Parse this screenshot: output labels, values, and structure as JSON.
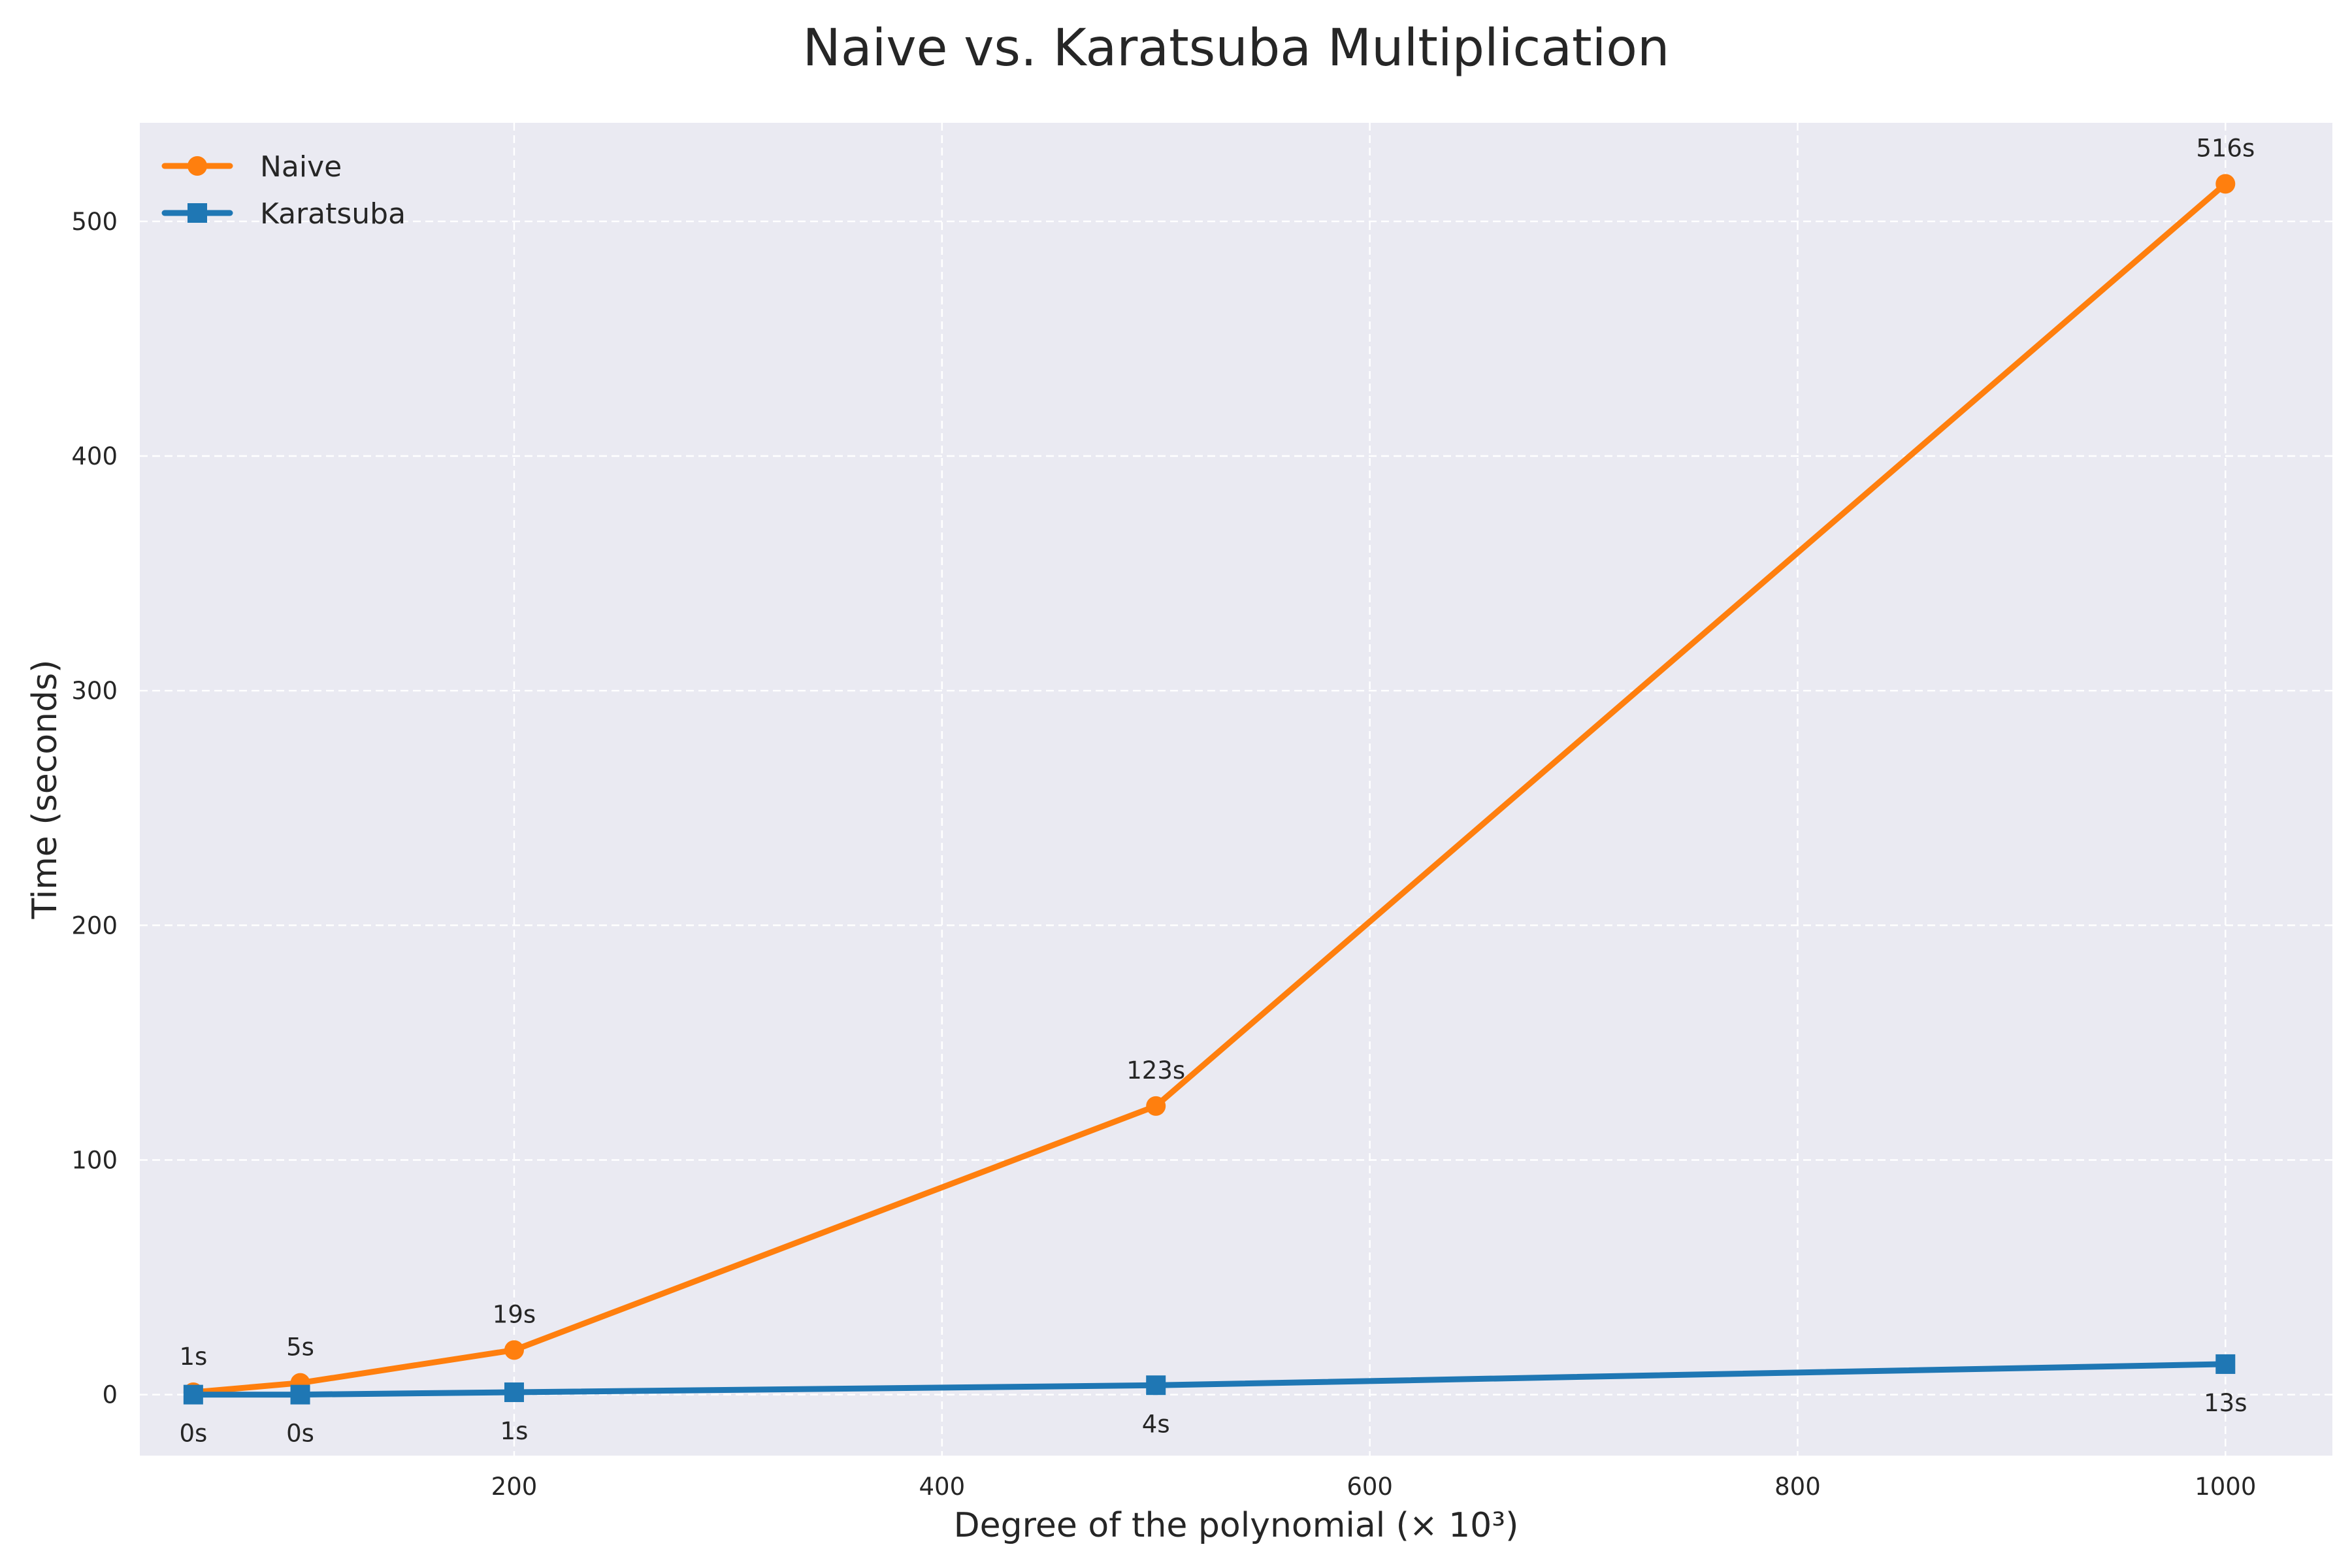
{
  "chart_data": {
    "type": "line",
    "title": "Naive vs. Karatsuba Multiplication",
    "xlabel": "Degree of the polynomial (× 10³)",
    "ylabel": "Time (seconds)",
    "xlim": [
      25,
      1050
    ],
    "ylim": [
      -26,
      542
    ],
    "x_ticks": [
      200,
      400,
      600,
      800,
      1000
    ],
    "y_ticks": [
      0,
      100,
      200,
      300,
      400,
      500
    ],
    "grid": true,
    "legend_position": "top-left",
    "series": [
      {
        "name": "Naive",
        "color": "#ff7f0e",
        "marker": "circle",
        "x": [
          50,
          100,
          200,
          500,
          1000
        ],
        "y": [
          1,
          5,
          19,
          123,
          516
        ],
        "labels": [
          "1s",
          "5s",
          "19s",
          "123s",
          "516s"
        ],
        "label_position": "above"
      },
      {
        "name": "Karatsuba",
        "color": "#1f77b4",
        "marker": "square",
        "x": [
          50,
          100,
          200,
          500,
          1000
        ],
        "y": [
          0,
          0,
          1,
          4,
          13
        ],
        "labels": [
          "0s",
          "0s",
          "1s",
          "4s",
          "13s"
        ],
        "label_position": "below"
      }
    ]
  },
  "style": {
    "plot_background": "#eaeaf2",
    "grid_color": "#ffffff",
    "text_color": "#262626"
  }
}
